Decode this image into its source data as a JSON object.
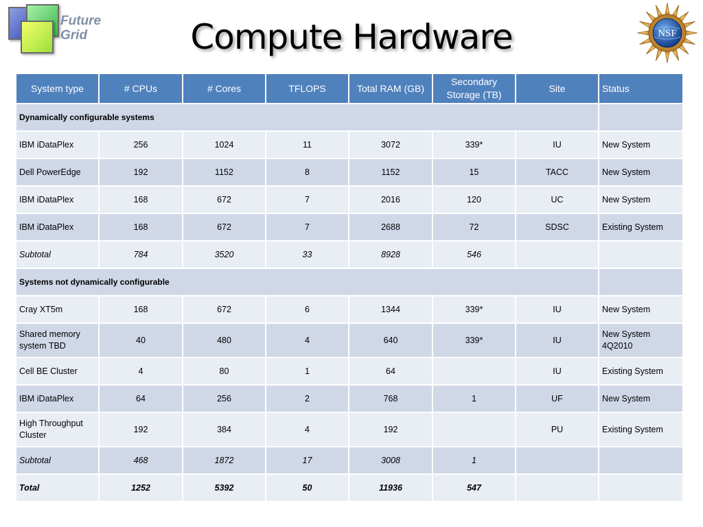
{
  "logo_text": [
    "Future",
    "Grid"
  ],
  "title": "Compute Hardware",
  "nsf_seal_text": "NSF",
  "table": {
    "headers": [
      "System type",
      "# CPUs",
      "# Cores",
      "TFLOPS",
      "Total RAM (GB)",
      "Secondary Storage (TB)",
      "Site",
      "Status"
    ],
    "rows": [
      {
        "kind": "section",
        "label": "Dynamically configurable systems",
        "shade": "even"
      },
      {
        "kind": "data",
        "shade": "odd",
        "cells": [
          "IBM iDataPlex",
          "256",
          "1024",
          "11",
          "3072",
          "339*",
          "IU",
          "New System"
        ]
      },
      {
        "kind": "data",
        "shade": "even",
        "cells": [
          "Dell PowerEdge",
          "192",
          "1152",
          "8",
          "1152",
          "15",
          "TACC",
          "New System"
        ]
      },
      {
        "kind": "data",
        "shade": "odd",
        "cells": [
          "IBM iDataPlex",
          "168",
          "672",
          "7",
          "2016",
          "120",
          "UC",
          "New System"
        ]
      },
      {
        "kind": "data",
        "shade": "even",
        "cells": [
          "IBM iDataPlex",
          "168",
          "672",
          "7",
          "2688",
          "72",
          "SDSC",
          "Existing System"
        ]
      },
      {
        "kind": "subtotal",
        "shade": "odd",
        "cells": [
          "Subtotal",
          "784",
          "3520",
          "33",
          "8928",
          "546",
          "",
          ""
        ]
      },
      {
        "kind": "section",
        "label": "Systems not dynamically configurable",
        "shade": "even"
      },
      {
        "kind": "data",
        "shade": "odd",
        "cells": [
          "Cray XT5m",
          "168",
          "672",
          "6",
          "1344",
          "339*",
          "IU",
          "New System"
        ]
      },
      {
        "kind": "data",
        "shade": "even",
        "tall": true,
        "cells": [
          "Shared memory system TBD",
          "40",
          "480",
          "4",
          "640",
          "339*",
          "IU",
          "New System 4Q2010"
        ]
      },
      {
        "kind": "data",
        "shade": "odd",
        "cells": [
          "Cell BE Cluster",
          "4",
          "80",
          "1",
          "64",
          "",
          "IU",
          "Existing System"
        ]
      },
      {
        "kind": "data",
        "shade": "even",
        "cells": [
          "IBM iDataPlex",
          "64",
          "256",
          "2",
          "768",
          "1",
          "UF",
          "New System"
        ]
      },
      {
        "kind": "data",
        "shade": "odd",
        "tall": true,
        "cells": [
          "High Throughput Cluster",
          "192",
          "384",
          "4",
          "192",
          "",
          "PU",
          "Existing System"
        ]
      },
      {
        "kind": "subtotal",
        "shade": "even",
        "cells": [
          "Subtotal",
          "468",
          "1872",
          "17",
          "3008",
          "1",
          "",
          ""
        ]
      },
      {
        "kind": "total",
        "shade": "odd",
        "cells": [
          "Total",
          "1252",
          "5392",
          "50",
          "11936",
          "547",
          "",
          ""
        ]
      }
    ]
  },
  "colors": {
    "header": "#4f81bd",
    "row_dark": "#d0d8e8",
    "row_light": "#e9edf4"
  }
}
